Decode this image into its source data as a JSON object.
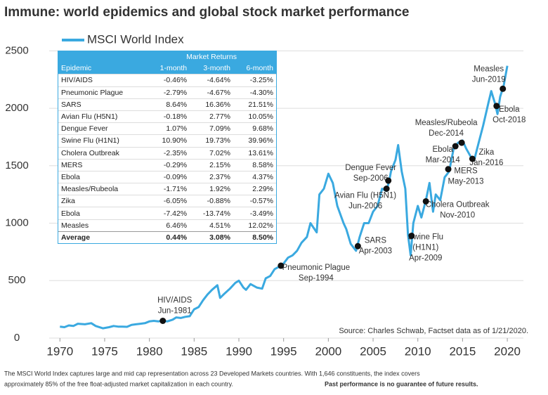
{
  "chart_data": {
    "type": "line",
    "title": "Immune: world epidemics and global stock market performance",
    "series": [
      {
        "name": "MSCI World Index",
        "color": "#3aa9e0",
        "x": [
          1970,
          1970.5,
          1971,
          1971.5,
          1972,
          1972.8,
          1973.5,
          1974,
          1974.8,
          1975.5,
          1976,
          1976.5,
          1977,
          1977.5,
          1978,
          1978.5,
          1979,
          1979.5,
          1980,
          1980.5,
          1981,
          1981.5,
          1982,
          1982.6,
          1983,
          1983.5,
          1984,
          1984.5,
          1985,
          1985.5,
          1986,
          1986.5,
          1987,
          1987.6,
          1987.9,
          1988.3,
          1989,
          1989.6,
          1990,
          1990.5,
          1990.8,
          1991.3,
          1992,
          1992.6,
          1993,
          1993.5,
          1994,
          1994.7,
          1995,
          1995.5,
          1996,
          1996.5,
          1997,
          1997.6,
          1998,
          1998.7,
          1999,
          1999.5,
          2000,
          2000.5,
          2001,
          2001.7,
          2002,
          2002.5,
          2003.1,
          2003.5,
          2004,
          2004.5,
          2005,
          2005.5,
          2006,
          2006.5,
          2006.8,
          2007,
          2007.5,
          2007.8,
          2008.2,
          2008.6,
          2008.9,
          2009.2,
          2009.5,
          2010,
          2010.4,
          2010.9,
          2011.3,
          2011.7,
          2012,
          2012.5,
          2013,
          2013.5,
          2014,
          2014.5,
          2015,
          2015.4,
          2015.9,
          2016.3,
          2016.8,
          2017.3,
          2017.9,
          2018.2,
          2018.6,
          2018.9,
          2019.2,
          2019.6,
          2020
        ],
        "values": [
          100,
          95,
          110,
          105,
          125,
          120,
          130,
          105,
          85,
          95,
          105,
          100,
          100,
          98,
          115,
          120,
          125,
          130,
          145,
          150,
          145,
          150,
          145,
          160,
          180,
          175,
          185,
          190,
          250,
          270,
          330,
          380,
          420,
          460,
          350,
          380,
          430,
          480,
          500,
          440,
          420,
          470,
          440,
          430,
          520,
          540,
          600,
          630,
          650,
          700,
          720,
          760,
          830,
          880,
          1000,
          920,
          1250,
          1300,
          1430,
          1350,
          1150,
          1000,
          950,
          820,
          760,
          880,
          1000,
          1000,
          1100,
          1150,
          1300,
          1280,
          1370,
          1450,
          1550,
          1680,
          1450,
          1300,
          900,
          720,
          1000,
          1150,
          1050,
          1200,
          1350,
          1100,
          1250,
          1200,
          1400,
          1450,
          1650,
          1700,
          1720,
          1650,
          1580,
          1550,
          1700,
          1850,
          2050,
          2150,
          2050,
          1950,
          2100,
          2200,
          2370
        ]
      }
    ],
    "xlim": [
      1968.8,
      2021.8
    ],
    "ylim": [
      0,
      2600
    ],
    "xticks": [
      1970,
      1975,
      1980,
      1985,
      1990,
      1995,
      2000,
      2005,
      2010,
      2015,
      2020
    ],
    "yticks": [
      0,
      500,
      1000,
      1500,
      2000,
      2500
    ],
    "grid": true,
    "events": [
      {
        "lines": [
          "HIV/AIDS",
          "Jun-1981"
        ],
        "x": 1981.5,
        "y": 150
      },
      {
        "lines": [
          "Pneumonic Plague",
          "Sep-1994"
        ],
        "x": 1994.7,
        "y": 630
      },
      {
        "lines": [
          "SARS",
          "Apr-2003"
        ],
        "x": 2003.3,
        "y": 800
      },
      {
        "lines": [
          "Avian Flu (H5N1)",
          "Jun-2006"
        ],
        "x": 2006.5,
        "y": 1300
      },
      {
        "lines": [
          "Dengue Fever",
          "Sep-2006"
        ],
        "x": 2006.7,
        "y": 1370
      },
      {
        "lines": [
          "Swine Flu",
          "(H1N1)",
          "Apr-2009"
        ],
        "x": 2009.3,
        "y": 890
      },
      {
        "lines": [
          "Cholera Outbreak",
          "Nov-2010"
        ],
        "x": 2010.9,
        "y": 1190
      },
      {
        "lines": [
          "MERS",
          "May-2013"
        ],
        "x": 2013.4,
        "y": 1470
      },
      {
        "lines": [
          "Ebola",
          "Mar-2014"
        ],
        "x": 2014.2,
        "y": 1670
      },
      {
        "lines": [
          "Measles/Rubeola",
          "Dec-2014"
        ],
        "x": 2014.9,
        "y": 1700
      },
      {
        "lines": [
          "Zika",
          "Jan-2016"
        ],
        "x": 2016.1,
        "y": 1560
      },
      {
        "lines": [
          "Ebola",
          "Oct-2018"
        ],
        "x": 2018.8,
        "y": 2020
      },
      {
        "lines": [
          "Measles",
          "Jun-2019"
        ],
        "x": 2019.5,
        "y": 2170
      }
    ],
    "source": "Source: Charles Schwab, Factset data as of 1/21/2020.",
    "footnote": [
      "The MSCI World Index captures large and mid cap representation across 23 Developed Markets countries. With 1,646 constituents, the index covers",
      "approximately 85% of the free float-adjusted market capitalization in each country."
    ],
    "disclaimer": "Past performance is no guarantee of future results."
  },
  "table": {
    "group_header": "Market Returns",
    "columns": [
      "Epidemic",
      "1-month",
      "3-month",
      "6-month"
    ],
    "rows": [
      [
        "HIV/AIDS",
        "-0.46%",
        "-4.64%",
        "-3.25%"
      ],
      [
        "Pneumonic Plague",
        "-2.79%",
        "-4.67%",
        "-4.30%"
      ],
      [
        "SARS",
        "8.64%",
        "16.36%",
        "21.51%"
      ],
      [
        "Avian Flu (H5N1)",
        "-0.18%",
        "2.77%",
        "10.05%"
      ],
      [
        "Dengue Fever",
        "1.07%",
        "7.09%",
        "9.68%"
      ],
      [
        "Swine Flu (H1N1)",
        "10.90%",
        "19.73%",
        "39.96%"
      ],
      [
        "Cholera Outbreak",
        "-2.35%",
        "7.02%",
        "13.61%"
      ],
      [
        "MERS",
        "-0.29%",
        "2.15%",
        "8.58%"
      ],
      [
        "Ebola",
        "-0.09%",
        "2.37%",
        "4.37%"
      ],
      [
        "Measles/Rubeola",
        "-1.71%",
        "1.92%",
        "2.29%"
      ],
      [
        "Zika",
        "-6.05%",
        "-0.88%",
        "-0.57%"
      ],
      [
        "Ebola",
        "-7.42%",
        "-13.74%",
        "-3.49%"
      ],
      [
        "Measles",
        "6.46%",
        "4.51%",
        "12.02%"
      ]
    ],
    "total": [
      "Average",
      "0.44%",
      "3.08%",
      "8.50%"
    ]
  }
}
